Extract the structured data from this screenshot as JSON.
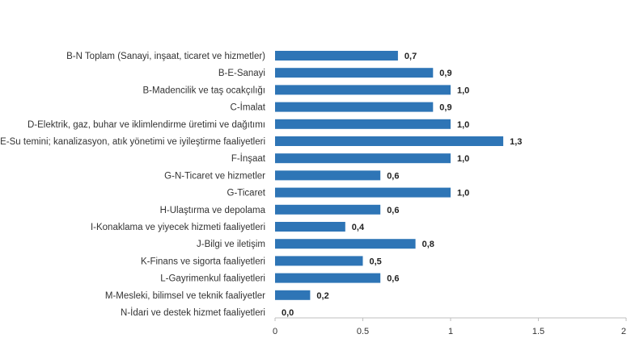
{
  "chart_data": {
    "type": "bar",
    "orientation": "horizontal",
    "categories": [
      "B-N Toplam (Sanayi, inşaat, ticaret ve hizmetler)",
      "B-E-Sanayi",
      "B-Madencilik ve taş ocakçılığı",
      "C-İmalat",
      "D-Elektrik, gaz, buhar ve iklimlendirme üretimi ve dağıtımı",
      "E-Su temini; kanalizasyon, atık yönetimi ve iyileştirme faaliyetleri",
      "F-İnşaat",
      "G-N-Ticaret ve hizmetler",
      "G-Ticaret",
      "H-Ulaştırma ve depolama",
      "I-Konaklama ve yiyecek hizmeti faaliyetleri",
      "J-Bilgi ve iletişim",
      "K-Finans ve sigorta faaliyetleri",
      "L-Gayrimenkul faaliyetleri",
      "M-Mesleki, bilimsel ve teknik faaliyetler",
      "N-İdari ve destek hizmet faaliyetleri"
    ],
    "values": [
      0.7,
      0.9,
      1.0,
      0.9,
      1.0,
      1.3,
      1.0,
      0.6,
      1.0,
      0.6,
      0.4,
      0.8,
      0.5,
      0.6,
      0.2,
      0.0
    ],
    "value_labels": [
      "0,7",
      "0,9",
      "1,0",
      "0,9",
      "1,0",
      "1,3",
      "1,0",
      "0,6",
      "1,0",
      "0,6",
      "0,4",
      "0,8",
      "0,5",
      "0,6",
      "0,2",
      "0,0"
    ],
    "title": "",
    "xlabel": "",
    "ylabel": "",
    "xlim": [
      0,
      2
    ],
    "x_ticks": [
      0,
      0.5,
      1,
      1.5,
      2
    ],
    "x_tick_labels": [
      "0",
      "0.5",
      "1",
      "1.5",
      "2"
    ],
    "grid": false,
    "bar_color": "#2e75b6"
  }
}
